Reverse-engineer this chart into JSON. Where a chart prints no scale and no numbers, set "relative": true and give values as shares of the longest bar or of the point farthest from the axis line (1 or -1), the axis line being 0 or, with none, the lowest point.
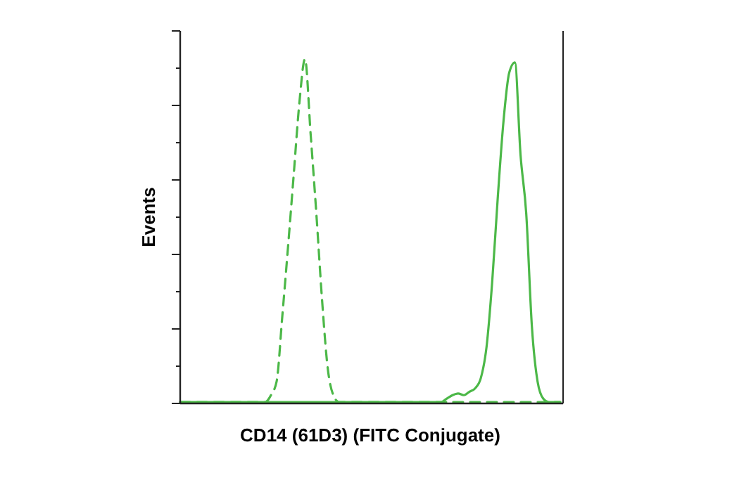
{
  "chart_data": {
    "type": "line",
    "relative": true,
    "xlabel": "CD14 (61D3) (FITC Conjugate)",
    "ylabel": "Events",
    "marker": "none",
    "categories": [
      null,
      null,
      null,
      null,
      null,
      null,
      null,
      null,
      null,
      null,
      null,
      null,
      null,
      null,
      null,
      null,
      null,
      null,
      null,
      null,
      null,
      null,
      null,
      null,
      null,
      null,
      null,
      null,
      null,
      null,
      null,
      null,
      null,
      null,
      null,
      null,
      null,
      null,
      null,
      null,
      null,
      null,
      null,
      null,
      null,
      null,
      null,
      null,
      null,
      null,
      null,
      null,
      null,
      null,
      null,
      null,
      null,
      null,
      null,
      null,
      null,
      null,
      null,
      null,
      null,
      null,
      null,
      null
    ],
    "series": [
      {
        "color": "#4cb848",
        "line_style": "dashed",
        "values": [
          0,
          0,
          0,
          0,
          0,
          0,
          0,
          0,
          0,
          0,
          0,
          0,
          0,
          0,
          0,
          0,
          0.02,
          0.06,
          0.25,
          0.45,
          0.66,
          0.87,
          1,
          0.78,
          0.55,
          0.3,
          0.1,
          0.02,
          0,
          0,
          0,
          0,
          0,
          0,
          0,
          0,
          0,
          0,
          0,
          0,
          0,
          0,
          0,
          0,
          0,
          0,
          0,
          0,
          0,
          0,
          0,
          0,
          0,
          0,
          0,
          0,
          0,
          0,
          0,
          0,
          0,
          0,
          0,
          0,
          0,
          0,
          0,
          0
        ]
      },
      {
        "color": "#4cb848",
        "line_style": "solid",
        "values": [
          0,
          0,
          0,
          0,
          0,
          0,
          0,
          0,
          0,
          0,
          0,
          0,
          0,
          0,
          0,
          0,
          0,
          0,
          0,
          0,
          0,
          0,
          0,
          0,
          0,
          0,
          0,
          0,
          0,
          0,
          0,
          0,
          0,
          0,
          0,
          0,
          0,
          0,
          0,
          0,
          0,
          0,
          0,
          0,
          0,
          0,
          0,
          0.01,
          0.02,
          0.025,
          0.02,
          0.03,
          0.04,
          0.07,
          0.16,
          0.35,
          0.6,
          0.82,
          0.96,
          0.99,
          0.72,
          0.55,
          0.22,
          0.06,
          0.01,
          0,
          0,
          0
        ]
      }
    ]
  }
}
